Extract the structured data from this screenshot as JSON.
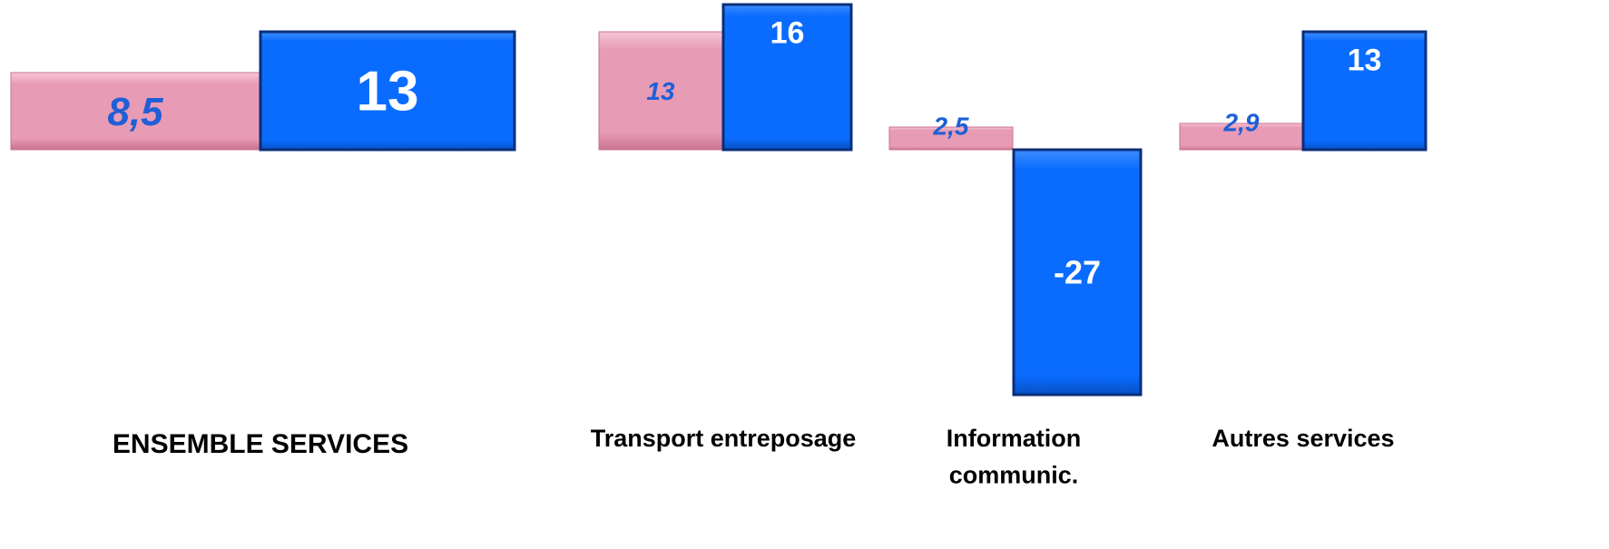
{
  "colors": {
    "series_a": "#e89bb5",
    "series_a_dark": "#c9738f",
    "series_a_label": "#1f5fd6",
    "series_b": "#0a6cff",
    "series_b_dark": "#0a2f7a",
    "series_b_label": "#ffffff",
    "category_label": "#000000"
  },
  "chart_data": {
    "type": "bar",
    "title": "",
    "xlabel": "",
    "ylabel": "",
    "grid": false,
    "legend": "none",
    "categories": [
      [
        "ENSEMBLE SERVICES"
      ],
      [
        "Transport entreposage"
      ],
      [
        "Information",
        "communic."
      ],
      [
        "Autres services"
      ]
    ],
    "series": [
      {
        "values": [
          8.5,
          13,
          2.5,
          2.9
        ],
        "labels": [
          "8,5",
          "13",
          "2,5",
          "2,9"
        ]
      },
      {
        "values": [
          13,
          16,
          -27,
          13
        ],
        "labels": [
          "13",
          "16",
          "-27",
          "13"
        ]
      }
    ]
  }
}
